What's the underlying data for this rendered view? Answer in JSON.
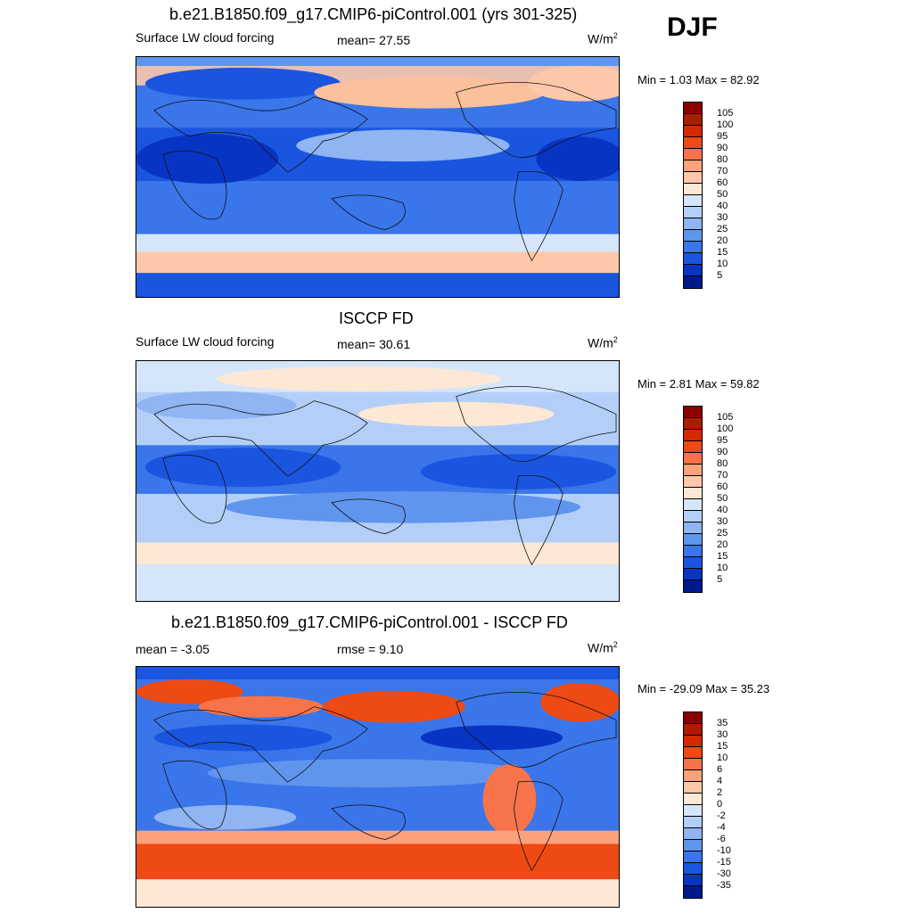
{
  "season": "DJF",
  "units_text": "W/m",
  "units_exp": "2",
  "panels": [
    {
      "title": "b.e21.B1850.f09_g17.CMIP6-piControl.001 (yrs 301-325)",
      "left_label": "Surface LW cloud forcing",
      "stat_label": "mean=  27.55",
      "minmax": "Min =   1.03 Max =  82.92",
      "colorbar_labels": [
        "105",
        "100",
        "95",
        "90",
        "80",
        "70",
        "60",
        "50",
        "40",
        "30",
        "25",
        "20",
        "15",
        "10",
        "5"
      ],
      "colorbar_colors": [
        "#8b0000",
        "#b01a00",
        "#d42a00",
        "#ee4a14",
        "#f7744a",
        "#fba27c",
        "#fdc8aa",
        "#fde8d6",
        "#d6e6fa",
        "#b4cff7",
        "#8fb5f2",
        "#6095ee",
        "#3a75ea",
        "#1a55e0",
        "#0834c4",
        "#001a8c"
      ]
    },
    {
      "title": "ISCCP FD",
      "left_label": "Surface LW cloud forcing",
      "stat_label": "mean=  30.61",
      "minmax": "Min =   2.81 Max =  59.82",
      "colorbar_labels": [
        "105",
        "100",
        "95",
        "90",
        "80",
        "70",
        "60",
        "50",
        "40",
        "30",
        "25",
        "20",
        "15",
        "10",
        "5"
      ],
      "colorbar_colors": [
        "#8b0000",
        "#b01a00",
        "#d42a00",
        "#ee4a14",
        "#f7744a",
        "#fba27c",
        "#fdc8aa",
        "#fde8d6",
        "#d6e6fa",
        "#b4cff7",
        "#8fb5f2",
        "#6095ee",
        "#3a75ea",
        "#1a55e0",
        "#0834c4",
        "#001a8c"
      ]
    },
    {
      "title": "b.e21.B1850.f09_g17.CMIP6-piControl.001 - ISCCP FD",
      "left_label": "mean =  -3.05",
      "stat_label": "rmse =    9.10",
      "minmax": "Min = -29.09 Max =  35.23",
      "colorbar_labels": [
        "35",
        "30",
        "15",
        "10",
        "6",
        "4",
        "2",
        "0",
        "-2",
        "-4",
        "-6",
        "-10",
        "-15",
        "-30",
        "-35"
      ],
      "colorbar_colors": [
        "#8b0000",
        "#b01a00",
        "#d42a00",
        "#ee4a14",
        "#f7744a",
        "#fba27c",
        "#fdc8aa",
        "#fde8d6",
        "#d6e6fa",
        "#b4cff7",
        "#8fb5f2",
        "#6095ee",
        "#3a75ea",
        "#1a55e0",
        "#0834c4",
        "#001a8c"
      ]
    }
  ]
}
